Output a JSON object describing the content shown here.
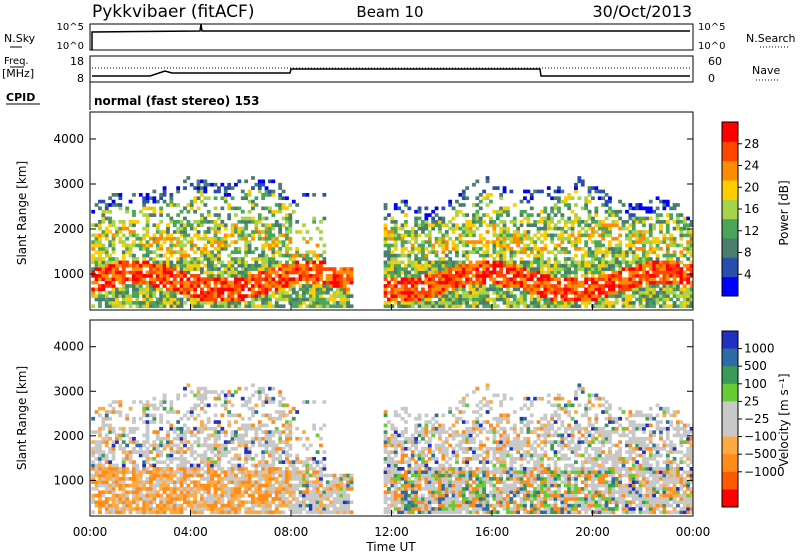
{
  "header": {
    "station": "Pykkvibaer (fitACF)",
    "beam": "Beam 10",
    "date": "30/Oct/2013"
  },
  "side_labels": {
    "nsky": "N.Sky",
    "nsearch": "N.Search",
    "freq": "Freq.",
    "freq_unit": "[MHz]",
    "nave": "Nave",
    "cpid": "CPID",
    "cpid_value": "normal (fast stereo) 153"
  },
  "noise_axis": {
    "left_top": "10^5",
    "left_bottom": "10^0",
    "right_top": "10^5",
    "right_bottom": "10^0"
  },
  "freq_axis": {
    "left_ticks": [
      "18",
      "8"
    ],
    "right_ticks": [
      "60",
      "0"
    ]
  },
  "colors": {
    "power": [
      "#0000ff",
      "#2a4db0",
      "#4a7d6c",
      "#4aa55a",
      "#a5d44a",
      "#ffcc00",
      "#ff8c00",
      "#ff4500",
      "#ff0000"
    ],
    "velocity": [
      "#ff0000",
      "#ff5a00",
      "#ff8c1a",
      "#ffaa40",
      "#c8c8c8",
      "#c8c8c8",
      "#66cc33",
      "#3a9a5a",
      "#2e6aa8",
      "#2030c0"
    ]
  },
  "chart_data": [
    {
      "type": "heatmap",
      "name": "power",
      "ylabel": "Slant Range [km]",
      "yticks": [
        "1000",
        "2000",
        "3000",
        "4000"
      ],
      "ylim": [
        200,
        4600
      ],
      "xlim": [
        0,
        24
      ],
      "colorbar_label": "Power [dB]",
      "colorbar_ticks": [
        "4",
        "8",
        "12",
        "16",
        "20",
        "24",
        "28"
      ],
      "colorbar_range": [
        0,
        32
      ]
    },
    {
      "type": "heatmap",
      "name": "velocity",
      "ylabel": "Slant Range [km]",
      "yticks": [
        "1000",
        "2000",
        "3000",
        "4000"
      ],
      "ylim": [
        200,
        4600
      ],
      "xlim": [
        0,
        24
      ],
      "colorbar_label": "Velocity [m s⁻¹]",
      "colorbar_ticks": [
        "1000",
        "500",
        "100",
        "25",
        "−25",
        "−100",
        "−500",
        "−1000"
      ]
    }
  ],
  "xaxis": {
    "label": "Time UT",
    "ticks": [
      "00:00",
      "04:00",
      "08:00",
      "12:00",
      "16:00",
      "20:00",
      "00:00"
    ]
  }
}
